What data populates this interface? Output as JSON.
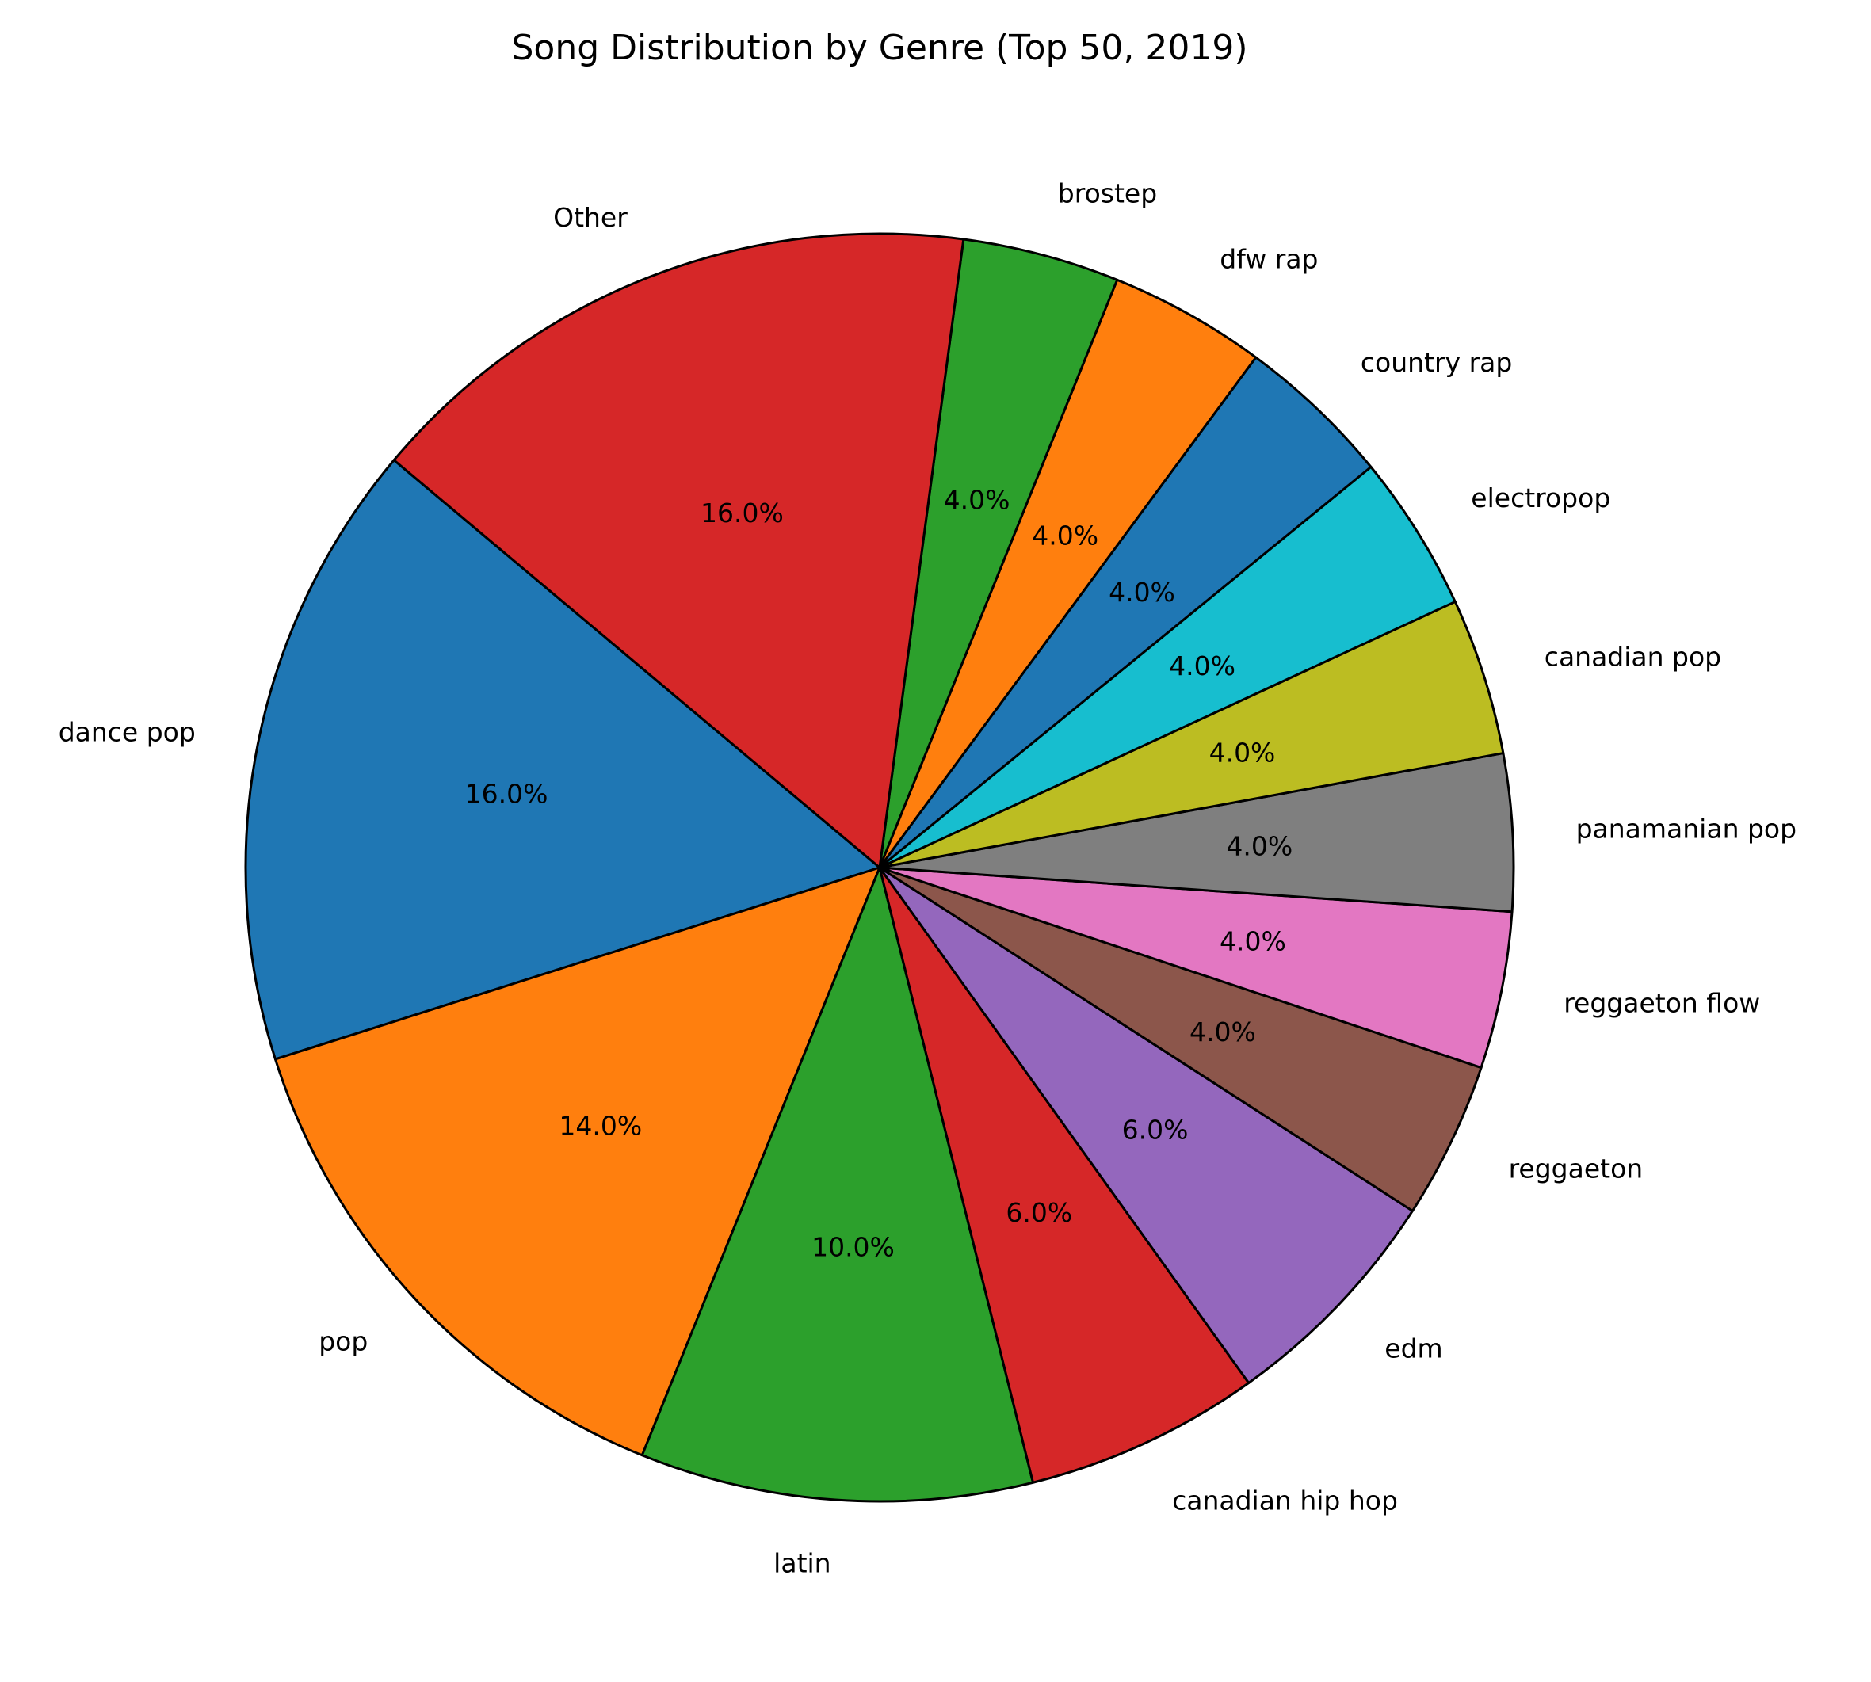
{
  "chart_data": {
    "type": "pie",
    "title": "Song Distribution by Genre (Top 50, 2019)",
    "start_angle_deg": 140,
    "counterclock": true,
    "categories": [
      "dance pop",
      "pop",
      "latin",
      "canadian hip hop",
      "edm",
      "reggaeton",
      "reggaeton flow",
      "panamanian pop",
      "canadian pop",
      "electropop",
      "country rap",
      "dfw rap",
      "brostep",
      "Other"
    ],
    "values": [
      16.0,
      14.0,
      10.0,
      6.0,
      6.0,
      4.0,
      4.0,
      4.0,
      4.0,
      4.0,
      4.0,
      4.0,
      4.0,
      16.0
    ],
    "value_labels": [
      "16.0%",
      "14.0%",
      "10.0%",
      "6.0%",
      "6.0%",
      "4.0%",
      "4.0%",
      "4.0%",
      "4.0%",
      "4.0%",
      "4.0%",
      "4.0%",
      "4.0%",
      "16.0%"
    ],
    "colors": [
      "#1f77b4",
      "#ff7f0e",
      "#2ca02c",
      "#d62728",
      "#9467bd",
      "#8c564b",
      "#e377c2",
      "#7f7f7f",
      "#bcbd22",
      "#17becf",
      "#1f77b4",
      "#ff7f0e",
      "#2ca02c",
      "#d62728"
    ],
    "edge_color": "#000000",
    "legend": "none"
  }
}
